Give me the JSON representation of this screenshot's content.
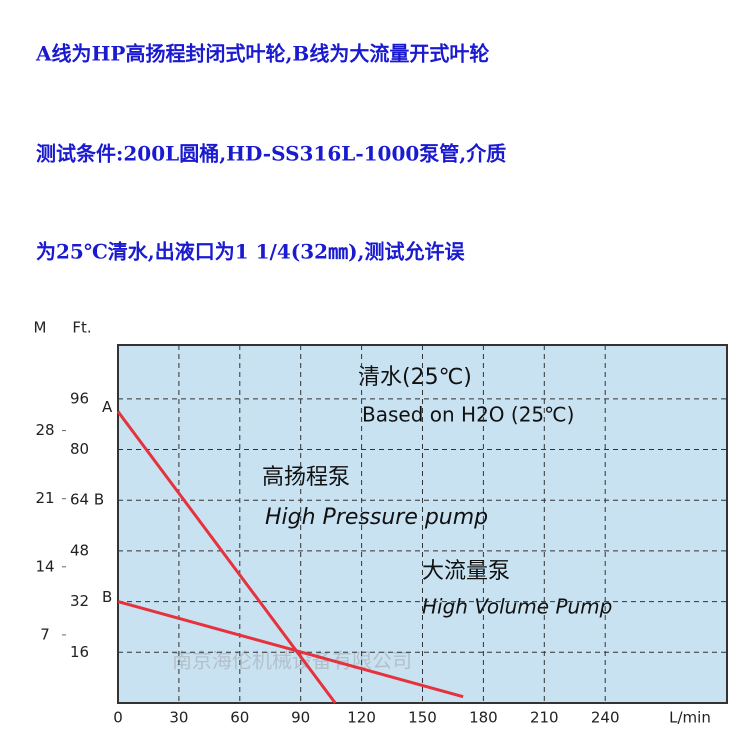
{
  "header": {
    "lines": [
      "A线为HP高扬程封闭式叶轮,B线为大流量开式叶轮",
      "测试条件:200L圆桶,HD-SS316L-1000泵管,介质",
      "为25℃清水,出液口为1  1/4(32㎜),测试允许误"
    ]
  },
  "chart_data": {
    "type": "line",
    "xlabel": "L/min",
    "ylabel": "Ft.",
    "y2label": "M",
    "xlim": [
      0,
      300
    ],
    "xticks": [
      0,
      30,
      60,
      90,
      120,
      150,
      180,
      210,
      240
    ],
    "ylim": [
      0,
      113
    ],
    "yticks": [
      16,
      32,
      48,
      {
        "value": 64,
        "label": "64 B"
      },
      80,
      96
    ],
    "y2lim": [
      0,
      36.8
    ],
    "y2ticks": [
      7,
      14,
      21,
      28
    ],
    "grid": true,
    "series": [
      {
        "name": "A",
        "color": "#e5323c",
        "x": [
          0,
          107
        ],
        "values": [
          92,
          0
        ]
      },
      {
        "name": "B",
        "color": "#e5323c",
        "x": [
          0,
          170
        ],
        "values": [
          32,
          2
        ]
      }
    ],
    "annotations": [
      "清水(25℃)",
      "Based on H2O (25℃)",
      "高扬程泵",
      "High Pressure pump",
      "大流量泵",
      "High Volume Pump",
      "南京海伦机械设备有限公司"
    ]
  }
}
